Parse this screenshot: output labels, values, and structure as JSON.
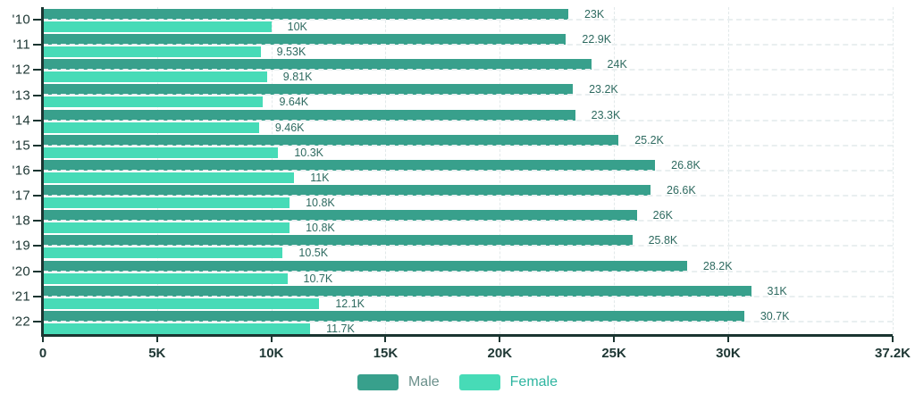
{
  "chart_data": {
    "type": "bar",
    "orientation": "horizontal",
    "title": "",
    "categories": [
      "'10",
      "'11",
      "'12",
      "'13",
      "'14",
      "'15",
      "'16",
      "'17",
      "'18",
      "'19",
      "'20",
      "'21",
      "'22"
    ],
    "series": [
      {
        "name": "Male",
        "color": "#38a08c",
        "values_k": [
          23,
          22.9,
          24,
          23.2,
          23.3,
          25.2,
          26.8,
          26.6,
          26,
          25.8,
          28.2,
          31,
          30.7
        ],
        "labels": [
          "23K",
          "22.9K",
          "24K",
          "23.2K",
          "23.3K",
          "25.2K",
          "26.8K",
          "26.6K",
          "26K",
          "25.8K",
          "28.2K",
          "31K",
          "30.7K"
        ]
      },
      {
        "name": "Female",
        "color": "#47dbb7",
        "values_k": [
          10,
          9.53,
          9.81,
          9.64,
          9.46,
          10.3,
          11,
          10.8,
          10.8,
          10.5,
          10.7,
          12.1,
          11.7
        ],
        "labels": [
          "10K",
          "9.53K",
          "9.81K",
          "9.64K",
          "9.46K",
          "10.3K",
          "11K",
          "10.8K",
          "10.8K",
          "10.5K",
          "10.7K",
          "12.1K",
          "11.7K"
        ]
      }
    ],
    "x_axis": {
      "min_k": 0,
      "max_k": 37.2,
      "ticks": [
        {
          "label": "0",
          "value_k": 0
        },
        {
          "label": "5K",
          "value_k": 5
        },
        {
          "label": "10K",
          "value_k": 10
        },
        {
          "label": "15K",
          "value_k": 15
        },
        {
          "label": "20K",
          "value_k": 20
        },
        {
          "label": "25K",
          "value_k": 25
        },
        {
          "label": "30K",
          "value_k": 30
        },
        {
          "label": "37.2K",
          "value_k": 37.2
        }
      ]
    },
    "grid": {
      "vertical": "dashed",
      "horizontal": "dashed-at-category-centers"
    },
    "legend_position": "bottom-center"
  },
  "legend": {
    "items": [
      {
        "label": "Male",
        "swatch_color": "#38a08c",
        "label_color": "#6b908b"
      },
      {
        "label": "Female",
        "swatch_color": "#47dbb7",
        "label_color": "#2eb5a0"
      }
    ]
  },
  "colors": {
    "background": "#ffffff",
    "axis": "#1b3531",
    "tick_label": "#1e3734",
    "category_label": "#1e3734",
    "value_label": "#2e6a60",
    "vertical_gridline": "#e2e9ea",
    "horizontal_gridline_dash": "#e9eff0"
  }
}
